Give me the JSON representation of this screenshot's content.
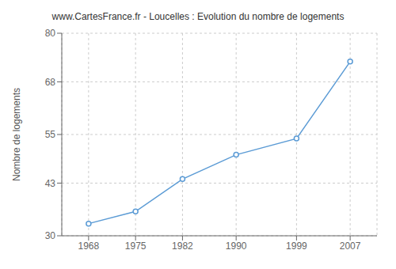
{
  "chart_data": {
    "type": "line",
    "title": "www.CartesFrance.fr - Loucelles : Evolution du nombre de logements",
    "ylabel": "Nombre de logements",
    "x": [
      1968,
      1975,
      1982,
      1990,
      1999,
      2007
    ],
    "values": [
      33,
      36,
      44,
      50,
      54,
      73
    ],
    "color": "#5b9bd5",
    "marker": "circle",
    "xlim": [
      1964,
      2011
    ],
    "ylim": [
      30,
      80
    ],
    "xticks": [
      1968,
      1975,
      1982,
      1990,
      1999,
      2007
    ],
    "yticks": [
      30,
      43,
      55,
      68,
      80
    ],
    "grid": true
  }
}
